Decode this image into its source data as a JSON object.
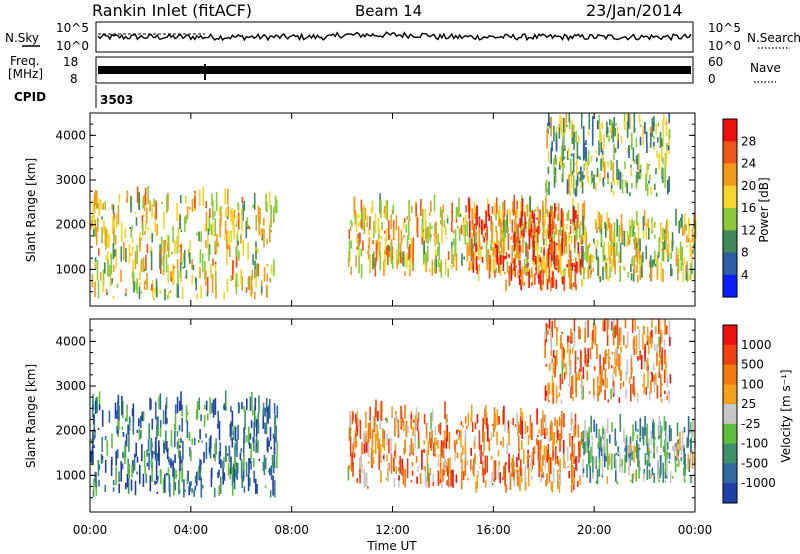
{
  "header": {
    "station": "Rankin Inlet (fitACF)",
    "beam": "Beam 14",
    "date": "23/Jan/2014"
  },
  "noise_panel": {
    "left_label": "N.Sky",
    "left_ticks": [
      "10^5",
      "10^0"
    ],
    "right_ticks": [
      "10^5",
      "10^0"
    ],
    "right_label": "N.Search"
  },
  "freq_panel": {
    "left_label_1": "Freq.",
    "left_label_2": "[MHz]",
    "left_ticks": [
      "18",
      "8"
    ],
    "right_ticks": [
      "60",
      "0"
    ],
    "right_label": "Nave"
  },
  "cpid": {
    "label": "CPID",
    "value": "3503"
  },
  "time_axis": {
    "label": "Time UT",
    "ticks": [
      "00:00",
      "04:00",
      "08:00",
      "12:00",
      "16:00",
      "20:00",
      "00:00"
    ]
  },
  "chart_data": [
    {
      "type": "heatmap",
      "name": "power",
      "ylabel": "Slant Range [km]",
      "xlabel": "",
      "ylim": [
        180,
        4500
      ],
      "yticks": [
        "1000",
        "2000",
        "3000",
        "4000"
      ],
      "colorbar_label": "Power [dB]",
      "colorbar_ticks": [
        "4",
        "8",
        "12",
        "16",
        "20",
        "24",
        "28"
      ],
      "colorbar_colors": [
        "#0a1fff",
        "#2b5fa8",
        "#3f8a56",
        "#8acb3a",
        "#f6d42a",
        "#f39a1a",
        "#f0561a",
        "#ee1010"
      ],
      "echo_regions": [
        {
          "t0": 0.0,
          "t1": 7.4,
          "r0": 300,
          "r1": 2500,
          "level": 0.55
        },
        {
          "t0": 10.2,
          "t1": 19.6,
          "r0": 800,
          "r1": 2300,
          "level": 0.6
        },
        {
          "t0": 15.0,
          "t1": 19.5,
          "r0": 500,
          "r1": 2200,
          "level": 0.85
        },
        {
          "t0": 19.5,
          "t1": 24.0,
          "r0": 700,
          "r1": 2000,
          "level": 0.5
        },
        {
          "t0": 18.0,
          "t1": 23.0,
          "r0": 2600,
          "r1": 4300,
          "level": 0.4
        }
      ]
    },
    {
      "type": "heatmap",
      "name": "velocity",
      "ylabel": "Slant Range [km]",
      "xlabel": "Time UT",
      "ylim": [
        180,
        4500
      ],
      "yticks": [
        "1000",
        "2000",
        "3000",
        "4000"
      ],
      "colorbar_label": "Velocity [m s⁻¹]",
      "colorbar_ticks": [
        "1000",
        "500",
        "100",
        "25",
        "-25",
        "-100",
        "-500",
        "-1000"
      ],
      "colorbar_colors": [
        "#1e3fa8",
        "#2f6aa3",
        "#3f8f6a",
        "#5fbe3a",
        "#c6c6c6",
        "#f2a01e",
        "#f07a10",
        "#f04010",
        "#ee1010"
      ],
      "echo_regions": [
        {
          "t0": 0.0,
          "t1": 7.4,
          "r0": 500,
          "r1": 2500,
          "level": 0.15
        },
        {
          "t0": 10.2,
          "t1": 14.5,
          "r0": 700,
          "r1": 2300,
          "level": 0.7
        },
        {
          "t0": 14.5,
          "t1": 19.5,
          "r0": 600,
          "r1": 2200,
          "level": 0.75
        },
        {
          "t0": 19.5,
          "t1": 24.0,
          "r0": 800,
          "r1": 2000,
          "level": 0.35
        },
        {
          "t0": 18.0,
          "t1": 23.0,
          "r0": 2600,
          "r1": 4300,
          "level": 0.7
        }
      ]
    }
  ]
}
